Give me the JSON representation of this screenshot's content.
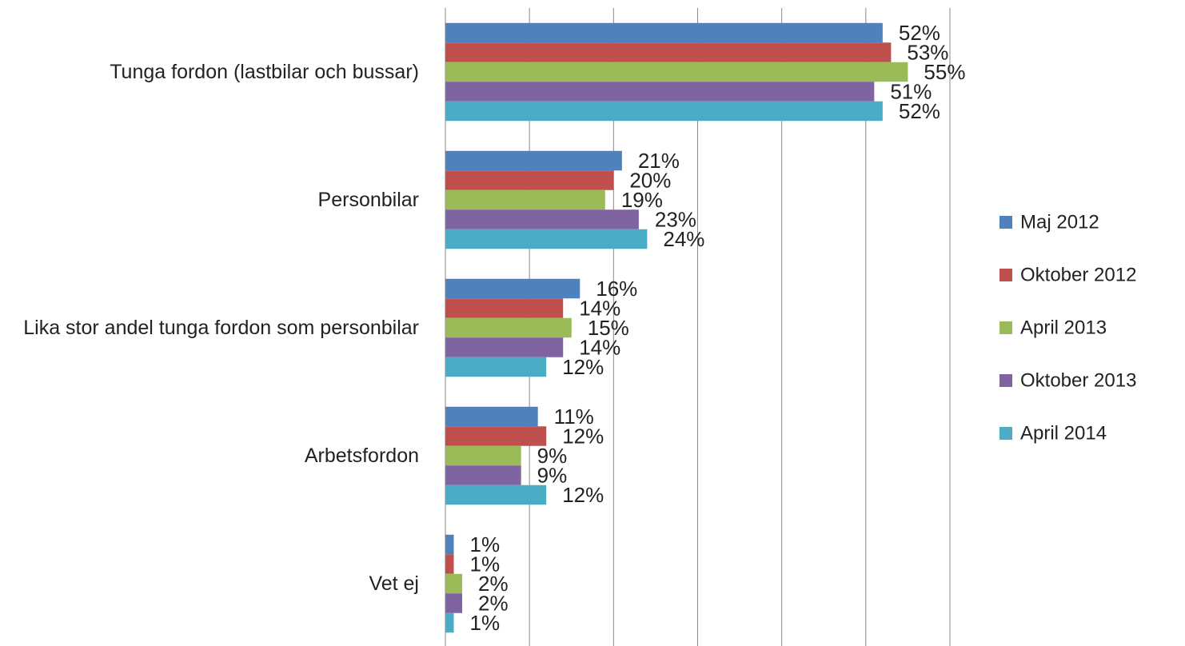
{
  "chart_data": {
    "type": "hbar",
    "categories": [
      "Tunga fordon (lastbilar och bussar)",
      "Personbilar",
      "Lika stor andel tunga fordon som personbilar",
      "Arbetsfordon",
      "Vet ej"
    ],
    "series": [
      {
        "name": "Maj 2012",
        "color": "#4f81bd",
        "values": [
          52,
          21,
          16,
          11,
          1
        ],
        "value_labels": [
          "52%",
          "21%",
          "16%",
          "11%",
          "1%"
        ]
      },
      {
        "name": "Oktober 2012",
        "color": "#c0504d",
        "values": [
          53,
          20,
          14,
          12,
          1
        ],
        "value_labels": [
          "53%",
          "20%",
          "14%",
          "12%",
          "1%"
        ]
      },
      {
        "name": "April 2013",
        "color": "#9bbb59",
        "values": [
          55,
          19,
          15,
          9,
          2
        ],
        "value_labels": [
          "55%",
          "19%",
          "15%",
          "9%",
          "2%"
        ]
      },
      {
        "name": "Oktober 2013",
        "color": "#8064a2",
        "values": [
          51,
          23,
          14,
          9,
          2
        ],
        "value_labels": [
          "51%",
          "23%",
          "14%",
          "9%",
          "2%"
        ]
      },
      {
        "name": "April 2014",
        "color": "#4bacc6",
        "values": [
          52,
          24,
          12,
          12,
          1
        ],
        "value_labels": [
          "52%",
          "24%",
          "12%",
          "12%",
          "1%"
        ]
      }
    ],
    "xlim": [
      0,
      60
    ],
    "xticks": [
      0,
      10,
      20,
      30,
      40,
      50,
      60
    ],
    "grid": true,
    "legend": "right"
  }
}
